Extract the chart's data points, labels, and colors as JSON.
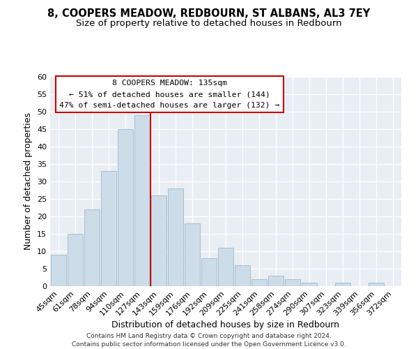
{
  "title": "8, COOPERS MEADOW, REDBOURN, ST ALBANS, AL3 7EY",
  "subtitle": "Size of property relative to detached houses in Redbourn",
  "xlabel": "Distribution of detached houses by size in Redbourn",
  "ylabel": "Number of detached properties",
  "bar_color": "#ccdce8",
  "bar_edge_color": "#aabfcf",
  "categories": [
    "45sqm",
    "61sqm",
    "78sqm",
    "94sqm",
    "110sqm",
    "127sqm",
    "143sqm",
    "159sqm",
    "176sqm",
    "192sqm",
    "209sqm",
    "225sqm",
    "241sqm",
    "258sqm",
    "274sqm",
    "290sqm",
    "307sqm",
    "323sqm",
    "339sqm",
    "356sqm",
    "372sqm"
  ],
  "values": [
    9,
    15,
    22,
    33,
    45,
    49,
    26,
    28,
    18,
    8,
    11,
    6,
    2,
    3,
    2,
    1,
    0,
    1,
    0,
    1,
    0
  ],
  "ylim": [
    0,
    60
  ],
  "yticks": [
    0,
    5,
    10,
    15,
    20,
    25,
    30,
    35,
    40,
    45,
    50,
    55,
    60
  ],
  "vline_x": 5.5,
  "vline_color": "#cc0000",
  "annotation_text": "8 COOPERS MEADOW: 135sqm\n← 51% of detached houses are smaller (144)\n47% of semi-detached houses are larger (132) →",
  "annotation_box_facecolor": "#ffffff",
  "annotation_box_edgecolor": "#cc0000",
  "footer_line1": "Contains HM Land Registry data © Crown copyright and database right 2024.",
  "footer_line2": "Contains public sector information licensed under the Open Government Licence v3.0.",
  "background_color": "#ffffff",
  "plot_bg_color": "#e8eef4",
  "grid_color": "#ffffff",
  "title_fontsize": 10.5,
  "subtitle_fontsize": 9.5,
  "axis_label_fontsize": 9,
  "tick_fontsize": 8
}
